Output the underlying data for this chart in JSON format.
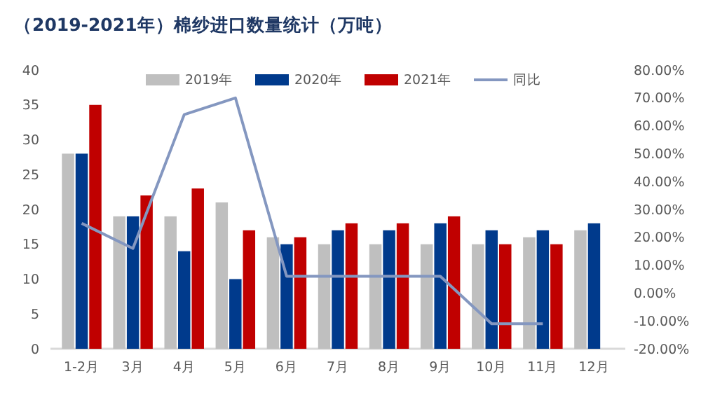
{
  "chart_data": {
    "type": "bar",
    "title": "（2019-2021年）棉纱进口数量统计（万吨）",
    "categories": [
      "1-2月",
      "3月",
      "4月",
      "5月",
      "6月",
      "7月",
      "8月",
      "9月",
      "10月",
      "11月",
      "12月"
    ],
    "series": [
      {
        "name": "2019年",
        "color": "#bfbfbf",
        "values": [
          28,
          19,
          19,
          21,
          16,
          15,
          15,
          15,
          15,
          16,
          17
        ]
      },
      {
        "name": "2020年",
        "color": "#003a8c",
        "values": [
          28,
          19,
          14,
          10,
          15,
          17,
          17,
          18,
          17,
          17,
          18
        ]
      },
      {
        "name": "2021年",
        "color": "#c00000",
        "values": [
          35,
          22,
          23,
          17,
          16,
          18,
          18,
          19,
          15,
          15,
          null
        ]
      },
      {
        "name": "同比",
        "type": "line",
        "axis": "y2",
        "color": "#8497c0",
        "values": [
          25,
          16,
          64,
          70,
          6,
          6,
          6,
          6,
          -11,
          -11,
          null
        ]
      }
    ],
    "ylim": [
      0,
      40
    ],
    "yticks": [
      0,
      5,
      10,
      15,
      20,
      25,
      30,
      35,
      40
    ],
    "y2lim": [
      -20,
      80
    ],
    "y2ticks": [
      {
        "value": -20,
        "label": "-20.00%"
      },
      {
        "value": -10,
        "label": "-10.00%"
      },
      {
        "value": 0,
        "label": "0.00%"
      },
      {
        "value": 10,
        "label": "10.00%"
      },
      {
        "value": 20,
        "label": "20.00%"
      },
      {
        "value": 30,
        "label": "30.00%"
      },
      {
        "value": 40,
        "label": "40.00%"
      },
      {
        "value": 50,
        "label": "50.00%"
      },
      {
        "value": 60,
        "label": "60.00%"
      },
      {
        "value": 70,
        "label": "70.00%"
      },
      {
        "value": 80,
        "label": "80.00%"
      }
    ],
    "legend": "top",
    "marker": "none"
  }
}
